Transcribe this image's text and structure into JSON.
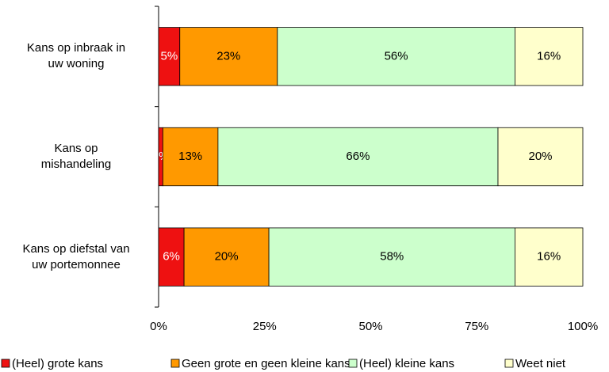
{
  "chart_data": {
    "type": "stacked_bar_horizontal",
    "categories": [
      "Kans op inbraak in\nuw woning",
      "Kans op\nmishandeling",
      "Kans op diefstal van\nuw portemonnee"
    ],
    "series": [
      {
        "name": "(Heel) grote kans",
        "color": "#ee1111",
        "label_color": "#ffffff",
        "values": [
          5,
          1,
          6
        ],
        "value_labels": [
          "5%",
          "1%",
          "6%"
        ]
      },
      {
        "name": "Geen grote en geen kleine kans",
        "color": "#ff9900",
        "label_color": "#000000",
        "values": [
          23,
          13,
          20
        ],
        "value_labels": [
          "23%",
          "13%",
          "20%"
        ]
      },
      {
        "name": "(Heel) kleine kans",
        "color": "#ccffcc",
        "label_color": "#000000",
        "values": [
          56,
          66,
          58
        ],
        "value_labels": [
          "56%",
          "66%",
          "58%"
        ]
      },
      {
        "name": "Weet niet",
        "color": "#ffffcc",
        "label_color": "#000000",
        "values": [
          16,
          20,
          16
        ],
        "value_labels": [
          "16%",
          "20%",
          "16%"
        ]
      }
    ],
    "xlim": [
      0,
      100
    ],
    "xticks": [
      {
        "value": 0,
        "label": "0%"
      },
      {
        "value": 25,
        "label": "25%"
      },
      {
        "value": 50,
        "label": "50%"
      },
      {
        "value": 75,
        "label": "75%"
      },
      {
        "value": 100,
        "label": "100%"
      }
    ],
    "legend": "bottom"
  }
}
